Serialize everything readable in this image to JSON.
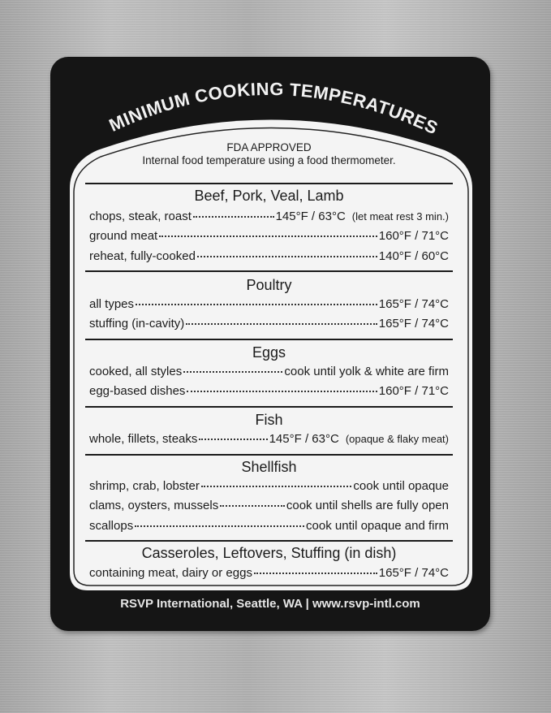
{
  "title": "MINIMUM COOKING TEMPERATURES",
  "subtitle": "FDA APPROVED",
  "description": "Internal food temperature using a food thermometer.",
  "sections": [
    {
      "heading": "Beef, Pork, Veal, Lamb",
      "rows": [
        {
          "item": "chops, steak, roast",
          "value": "145°F  /  63°C",
          "note": "(let meat rest 3 min.)"
        },
        {
          "item": "ground meat",
          "value": "160°F  /  71°C"
        },
        {
          "item": "reheat, fully-cooked",
          "value": "140°F  /  60°C"
        }
      ]
    },
    {
      "heading": "Poultry",
      "rows": [
        {
          "item": "all types",
          "value": "165°F  /  74°C"
        },
        {
          "item": "stuffing (in-cavity)",
          "value": "165°F  /  74°C"
        }
      ]
    },
    {
      "heading": "Eggs",
      "rows": [
        {
          "item": "cooked, all styles",
          "value": "cook until yolk & white are firm"
        },
        {
          "item": "egg-based dishes",
          "value": "160°F  /  71°C"
        }
      ]
    },
    {
      "heading": "Fish",
      "rows": [
        {
          "item": "whole, fillets, steaks",
          "value": "145°F / 63°C",
          "note": "(opaque & flaky meat)"
        }
      ]
    },
    {
      "heading": "Shellfish",
      "rows": [
        {
          "item": "shrimp, crab, lobster",
          "value": "cook until opaque"
        },
        {
          "item": "clams, oysters, mussels",
          "value": "cook until shells are fully open"
        },
        {
          "item": "scallops",
          "value": "cook until opaque and firm"
        }
      ]
    },
    {
      "heading": "Casseroles, Leftovers, Stuffing (in dish)",
      "rows": [
        {
          "item": "containing meat, dairy or eggs",
          "value": "165°F  /  74°C"
        }
      ]
    }
  ],
  "footer": "RSVP International, Seattle, WA  |  www.rsvp-intl.com",
  "colors": {
    "magnet": "#151515",
    "panel": "#f4f4f4",
    "metal": "#b8b8b8"
  }
}
